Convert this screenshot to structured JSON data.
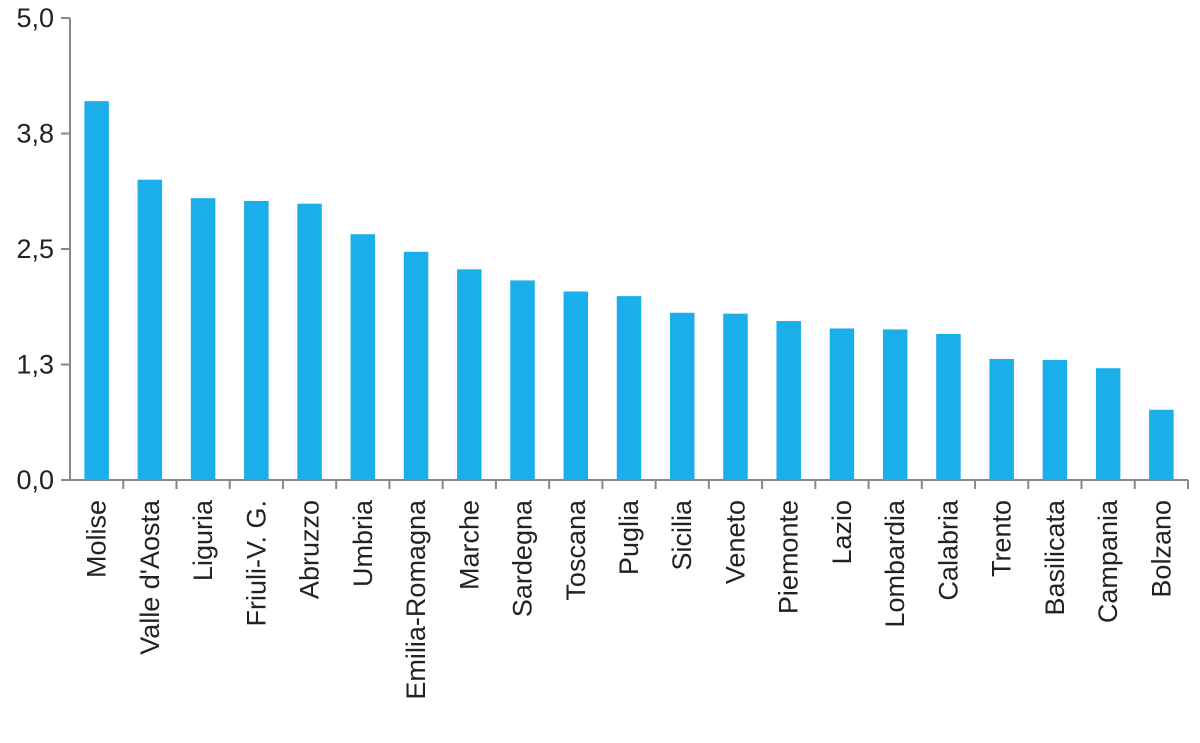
{
  "chart_data": {
    "type": "bar",
    "title": "",
    "xlabel": "",
    "ylabel": "",
    "categories": [
      "Molise",
      "Valle d'Aosta",
      "Liguria",
      "Friuli-V. G.",
      "Abruzzo",
      "Umbria",
      "Emilia-Romagna",
      "Marche",
      "Sardegna",
      "Toscana",
      "Puglia",
      "Sicilia",
      "Veneto",
      "Piemonte",
      "Lazio",
      "Lombardia",
      "Calabria",
      "Trento",
      "Basilicata",
      "Campania",
      "Bolzano"
    ],
    "values": [
      4.1,
      3.25,
      3.05,
      3.02,
      2.99,
      2.66,
      2.47,
      2.28,
      2.16,
      2.04,
      1.99,
      1.81,
      1.8,
      1.72,
      1.64,
      1.63,
      1.58,
      1.31,
      1.3,
      1.21,
      0.76
    ],
    "yticks": [
      "0,0",
      "1,3",
      "2,5",
      "3,8",
      "5,0"
    ],
    "ylim": [
      0,
      5
    ],
    "grid": false,
    "legend": "none",
    "bar_color": "#1aaeea",
    "axis_color": "#888888",
    "text_color": "#222222"
  }
}
